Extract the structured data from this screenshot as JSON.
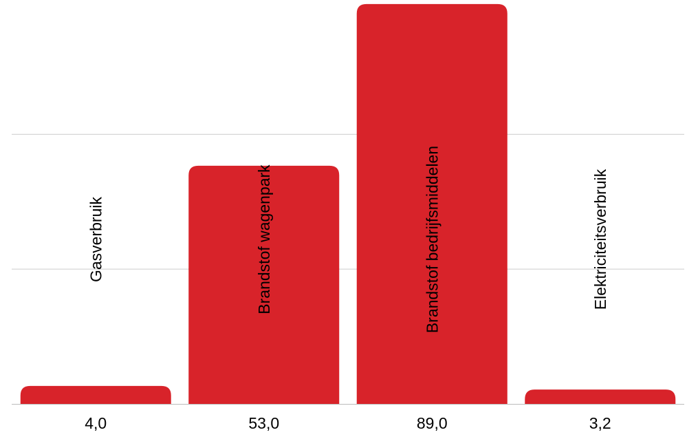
{
  "chart_data": {
    "type": "bar",
    "categories": [
      "Gasverbruik",
      "Brandstof wagenpark",
      "Brandstof bedrijfsmiddelen",
      "Elektriciteitsverbruik"
    ],
    "values": [
      4.0,
      53.0,
      89.0,
      3.2
    ],
    "value_labels": [
      "4,0",
      "53,0",
      "89,0",
      "3,2"
    ],
    "title": "",
    "xlabel": "",
    "ylabel": "",
    "ylim": [
      0,
      90
    ],
    "grid": true,
    "legend": "none",
    "colors": {
      "bar": "#d8232a",
      "grid": "#cccccc",
      "axis": "#bbbbbb",
      "text": "#000000"
    }
  }
}
